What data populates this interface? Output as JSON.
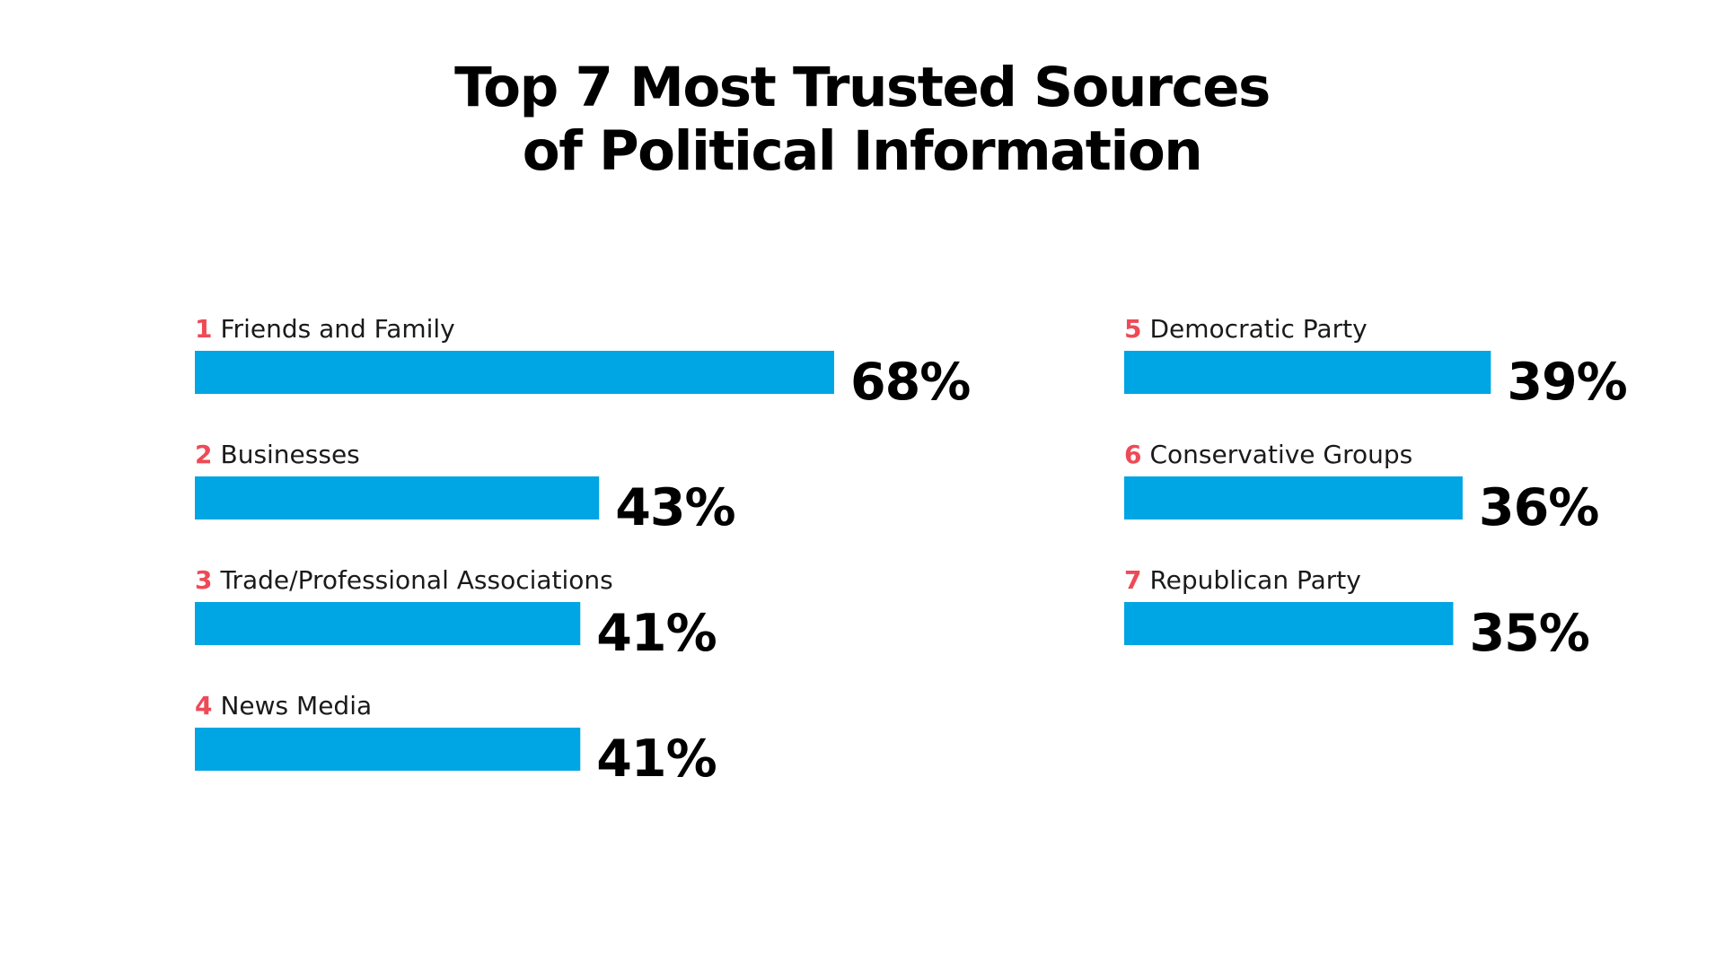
{
  "chart_data": {
    "type": "bar",
    "orientation": "horizontal",
    "title": "Top 7 Most Trusted Sources of Political Information",
    "title_lines": [
      "Top 7 Most Trusted Sources",
      "of Political Information"
    ],
    "categories": [
      "Friends and Family",
      "Businesses",
      "Trade/Professional Associations",
      "News Media",
      "Democratic Party",
      "Conservative Groups",
      "Republican Party"
    ],
    "ranks": [
      "1",
      "2",
      "3",
      "4",
      "5",
      "6",
      "7"
    ],
    "values": [
      68,
      43,
      41,
      41,
      39,
      36,
      35
    ],
    "value_labels": [
      "68%",
      "43%",
      "41%",
      "41%",
      "39%",
      "36%",
      "35%"
    ],
    "columns": [
      [
        0,
        1,
        2,
        3
      ],
      [
        4,
        5,
        6
      ]
    ],
    "unit": "%",
    "grid": false,
    "legend": "none",
    "colors": {
      "bar": "#00a5e3",
      "rank": "#ee4a56",
      "text": "#000000"
    }
  }
}
